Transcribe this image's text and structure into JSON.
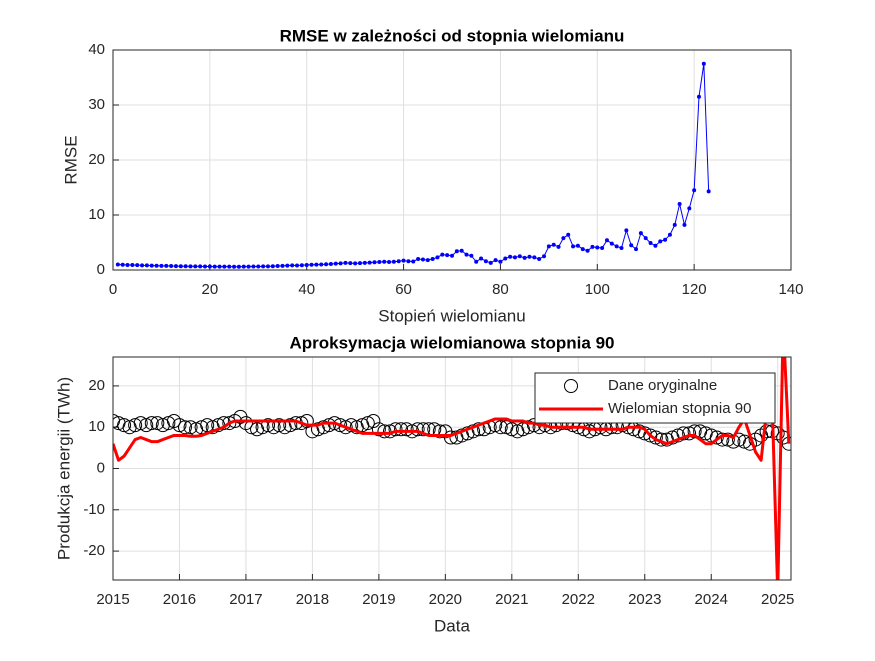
{
  "chart_data": [
    {
      "type": "line",
      "title": "RMSE w zależności od stopnia wielomianu",
      "xlabel": "Stopień wielomianu",
      "ylabel": "RMSE",
      "x": [
        1,
        2,
        3,
        4,
        5,
        6,
        7,
        8,
        9,
        10,
        11,
        12,
        13,
        14,
        15,
        16,
        17,
        18,
        19,
        20,
        21,
        22,
        23,
        24,
        25,
        26,
        27,
        28,
        29,
        30,
        31,
        32,
        33,
        34,
        35,
        36,
        37,
        38,
        39,
        40,
        41,
        42,
        43,
        44,
        45,
        46,
        47,
        48,
        49,
        50,
        51,
        52,
        53,
        54,
        55,
        56,
        57,
        58,
        59,
        60,
        61,
        62,
        63,
        64,
        65,
        66,
        67,
        68,
        69,
        70,
        71,
        72,
        73,
        74,
        75,
        76,
        77,
        78,
        79,
        80,
        81,
        82,
        83,
        84,
        85,
        86,
        87,
        88,
        89,
        90,
        91,
        92,
        93,
        94,
        95,
        96,
        97,
        98,
        99,
        100,
        101,
        102,
        103,
        104,
        105,
        106,
        107,
        108,
        109,
        110,
        111,
        112,
        113,
        114,
        115,
        116,
        117,
        118,
        119,
        120,
        121,
        122,
        123
      ],
      "series": [
        {
          "name": "RMSE",
          "color": "#0000ff",
          "marker": "dot",
          "line": true,
          "values": [
            1.0,
            0.95,
            0.92,
            0.9,
            0.88,
            0.85,
            0.83,
            0.8,
            0.78,
            0.76,
            0.74,
            0.72,
            0.7,
            0.69,
            0.68,
            0.67,
            0.66,
            0.65,
            0.64,
            0.63,
            0.62,
            0.62,
            0.61,
            0.61,
            0.6,
            0.6,
            0.61,
            0.62,
            0.63,
            0.64,
            0.65,
            0.67,
            0.69,
            0.72,
            0.75,
            0.8,
            0.85,
            0.82,
            0.86,
            0.9,
            0.95,
            0.98,
            1.0,
            1.05,
            1.1,
            1.15,
            1.2,
            1.3,
            1.25,
            1.2,
            1.25,
            1.3,
            1.35,
            1.4,
            1.45,
            1.5,
            1.45,
            1.5,
            1.6,
            1.7,
            1.6,
            1.55,
            2.0,
            1.9,
            1.8,
            2.0,
            2.3,
            2.8,
            2.7,
            2.6,
            3.4,
            3.5,
            2.8,
            2.6,
            1.5,
            2.1,
            1.6,
            1.3,
            1.8,
            1.5,
            2.1,
            2.4,
            2.3,
            2.5,
            2.2,
            2.4,
            2.3,
            2.0,
            2.5,
            4.3,
            4.6,
            4.2,
            5.8,
            6.4,
            4.3,
            4.4,
            3.8,
            3.5,
            4.2,
            4.1,
            4.0,
            5.4,
            4.8,
            4.3,
            4.0,
            7.2,
            4.5,
            3.8,
            6.7,
            5.8,
            4.9,
            4.4,
            5.2,
            5.5,
            6.4,
            8.2,
            12.0,
            8.2,
            11.2,
            14.5,
            31.5,
            37.5,
            14.3
          ]
        }
      ],
      "xlim": [
        0,
        140
      ],
      "xticks": [
        0,
        20,
        40,
        60,
        80,
        100,
        120,
        140
      ],
      "ylim": [
        0,
        40
      ],
      "yticks": [
        0,
        10,
        20,
        30,
        40
      ],
      "grid": true
    },
    {
      "type": "line",
      "title": "Aproksymacja wielomianowa stopnia 90",
      "xlabel": "Data",
      "ylabel": "Produkcja energii (TWh)",
      "x": [
        2015,
        2015.083,
        2015.167,
        2015.25,
        2015.333,
        2015.417,
        2015.5,
        2015.583,
        2015.667,
        2015.75,
        2015.833,
        2015.917,
        2016,
        2016.083,
        2016.167,
        2016.25,
        2016.333,
        2016.417,
        2016.5,
        2016.583,
        2016.667,
        2016.75,
        2016.833,
        2016.917,
        2017,
        2017.083,
        2017.167,
        2017.25,
        2017.333,
        2017.417,
        2017.5,
        2017.583,
        2017.667,
        2017.75,
        2017.833,
        2017.917,
        2018,
        2018.083,
        2018.167,
        2018.25,
        2018.333,
        2018.417,
        2018.5,
        2018.583,
        2018.667,
        2018.75,
        2018.833,
        2018.917,
        2019,
        2019.083,
        2019.167,
        2019.25,
        2019.333,
        2019.417,
        2019.5,
        2019.583,
        2019.667,
        2019.75,
        2019.833,
        2019.917,
        2020,
        2020.083,
        2020.167,
        2020.25,
        2020.333,
        2020.417,
        2020.5,
        2020.583,
        2020.667,
        2020.75,
        2020.833,
        2020.917,
        2021,
        2021.083,
        2021.167,
        2021.25,
        2021.333,
        2021.417,
        2021.5,
        2021.583,
        2021.667,
        2021.75,
        2021.833,
        2021.917,
        2022,
        2022.083,
        2022.167,
        2022.25,
        2022.333,
        2022.417,
        2022.5,
        2022.583,
        2022.667,
        2022.75,
        2022.833,
        2022.917,
        2023,
        2023.083,
        2023.167,
        2023.25,
        2023.333,
        2023.417,
        2023.5,
        2023.583,
        2023.667,
        2023.75,
        2023.833,
        2023.917,
        2024,
        2024.083,
        2024.167,
        2024.25,
        2024.333,
        2024.417,
        2024.5,
        2024.583,
        2024.667,
        2024.75,
        2024.833,
        2024.917,
        2025,
        2025.083,
        2025.167
      ],
      "series": [
        {
          "name": "Dane oryginalne",
          "color": "#000000",
          "marker": "circle",
          "line": false,
          "values": [
            11.5,
            11,
            10.5,
            10,
            10.5,
            11,
            10.5,
            11,
            11,
            10.5,
            11,
            11.5,
            10.5,
            10,
            10,
            9.5,
            10,
            10.5,
            10,
            10.5,
            11,
            11,
            11.5,
            12.5,
            11,
            10,
            9.5,
            10,
            10.5,
            10,
            10.5,
            10,
            10.5,
            11,
            11,
            11.5,
            9,
            9.5,
            10,
            10.5,
            11,
            10.5,
            10,
            10.5,
            10,
            10.5,
            11,
            11.5,
            9.5,
            9,
            9,
            9.5,
            9.5,
            9.5,
            9,
            9.5,
            9.5,
            9.5,
            9.5,
            9,
            9,
            7.5,
            7.5,
            8,
            8.5,
            9,
            9.5,
            9.5,
            10,
            10.5,
            10,
            10,
            9.5,
            9,
            9.5,
            10,
            10.5,
            10,
            10.5,
            10,
            10.5,
            11,
            11,
            10.5,
            10,
            9.5,
            9,
            9.5,
            10,
            9.5,
            10,
            10,
            10.5,
            10,
            9.5,
            9,
            8.5,
            8,
            7.5,
            7,
            7,
            7.5,
            8,
            8.5,
            8.5,
            9,
            9,
            8.5,
            8,
            7.5,
            7,
            7,
            6.5,
            7,
            6.5,
            6,
            7,
            8,
            9,
            9,
            8.5,
            7.5,
            6
          ]
        },
        {
          "name": "Wielomian stopnia 90",
          "color": "#ff0000",
          "marker": null,
          "line": true,
          "values": [
            6,
            2,
            3,
            5,
            7,
            7.5,
            7,
            6.5,
            6.5,
            7,
            7.5,
            8,
            8,
            8,
            7.8,
            7.8,
            8,
            8.5,
            9,
            9.5,
            10,
            11,
            11.5,
            11.5,
            11.5,
            11.5,
            11.5,
            11.5,
            11.5,
            11.5,
            11.5,
            11.5,
            11.5,
            11.5,
            11,
            10.5,
            10.5,
            10.5,
            11,
            11,
            11,
            10.5,
            10,
            9.5,
            9,
            8.5,
            8.5,
            8.5,
            8.5,
            8.5,
            8.5,
            9,
            9,
            9,
            9,
            9,
            8.5,
            8,
            8,
            8,
            8,
            8,
            8.5,
            9,
            9.5,
            10,
            10.5,
            11,
            11.5,
            12,
            12,
            12,
            11.5,
            11.5,
            11.5,
            11,
            11,
            10.5,
            10.5,
            10,
            10,
            10,
            10,
            10,
            10,
            10,
            9.5,
            9.5,
            9.5,
            9.5,
            9.5,
            9.5,
            9.5,
            10,
            10,
            10,
            9.5,
            8,
            7,
            6.5,
            6,
            6.5,
            7,
            7.5,
            8,
            8,
            7,
            6,
            6,
            7,
            8,
            8,
            7.5,
            10,
            12,
            8,
            4,
            2,
            14,
            16,
            -30,
            35,
            6
          ]
        }
      ],
      "xlim": [
        2015,
        2025.2
      ],
      "xticks": [
        2015,
        2016,
        2017,
        2018,
        2019,
        2020,
        2021,
        2022,
        2023,
        2024,
        2025
      ],
      "ylim": [
        -27,
        27
      ],
      "yticks": [
        -20,
        -10,
        0,
        10,
        20
      ],
      "grid": true,
      "legend": "northeast"
    }
  ]
}
